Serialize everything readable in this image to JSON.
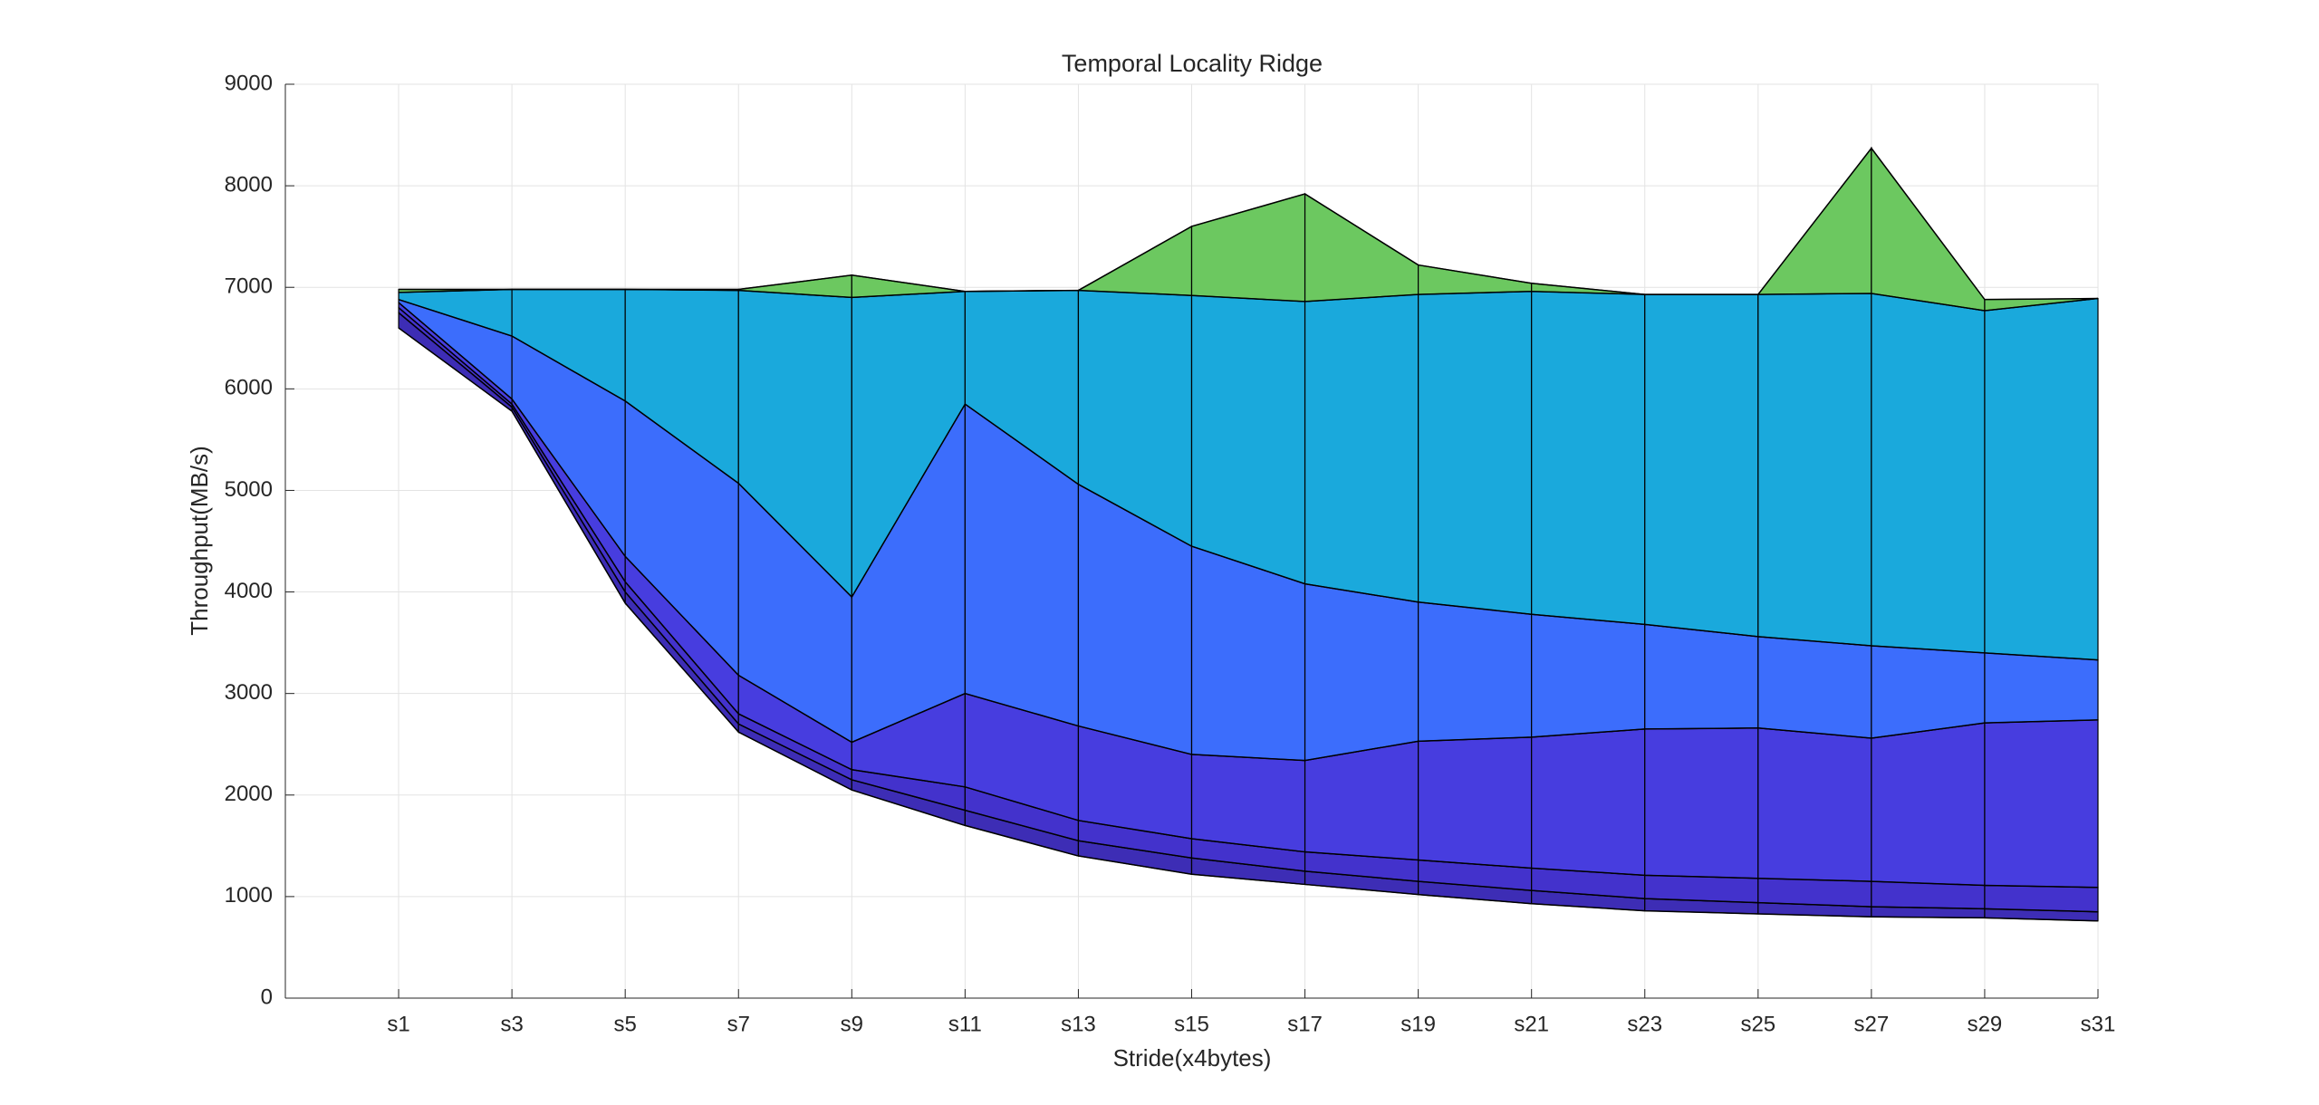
{
  "chart_data": {
    "type": "ridge",
    "title": "Temporal Locality Ridge",
    "x_label": "Stride(x4bytes)",
    "y_label": "Throughput(MB/s)",
    "categories": [
      "s1",
      "s3",
      "s5",
      "s7",
      "s9",
      "s11",
      "s13",
      "s15",
      "s17",
      "s19",
      "s21",
      "s23",
      "s25",
      "s27",
      "s29",
      "s31"
    ],
    "series": [
      {
        "values": [
          6600,
          5780,
          3890,
          2620,
          2050,
          1700,
          1400,
          1220,
          1120,
          1020,
          930,
          860,
          830,
          800,
          790,
          760
        ]
      },
      {
        "color": "#3d2db5",
        "values": [
          6750,
          5820,
          4000,
          2700,
          2150,
          1850,
          1550,
          1380,
          1250,
          1150,
          1060,
          980,
          940,
          900,
          880,
          850
        ]
      },
      {
        "color": "#4332cc",
        "values": [
          6800,
          5850,
          4100,
          2800,
          2250,
          2080,
          1750,
          1570,
          1440,
          1360,
          1280,
          1210,
          1180,
          1150,
          1110,
          1090
        ]
      },
      {
        "color": "#473ddf",
        "values": [
          6850,
          5900,
          4350,
          3180,
          2520,
          3000,
          2680,
          2400,
          2340,
          2530,
          2570,
          2650,
          2660,
          2560,
          2710,
          2740
        ]
      },
      {
        "color": "#3c6dfc",
        "values": [
          6880,
          6520,
          5880,
          5070,
          3950,
          5850,
          5060,
          4450,
          4080,
          3900,
          3780,
          3680,
          3560,
          3470,
          3400,
          3330
        ]
      },
      {
        "color": "#1aa9dc",
        "values": [
          6950,
          6980,
          6980,
          6970,
          6900,
          6960,
          6970,
          6920,
          6860,
          6930,
          6960,
          6930,
          6930,
          6940,
          6770,
          6890
        ]
      },
      {
        "color": "#6cc860",
        "values": [
          6980,
          6980,
          6980,
          6980,
          7120,
          6960,
          6970,
          7600,
          7920,
          7220,
          7040,
          6930,
          6930,
          8370,
          6880,
          6890
        ]
      }
    ],
    "ylim": [
      0,
      9000
    ],
    "yticks": [
      0,
      1000,
      2000,
      3000,
      4000,
      5000,
      6000,
      7000,
      8000,
      9000
    ],
    "grid": true
  }
}
